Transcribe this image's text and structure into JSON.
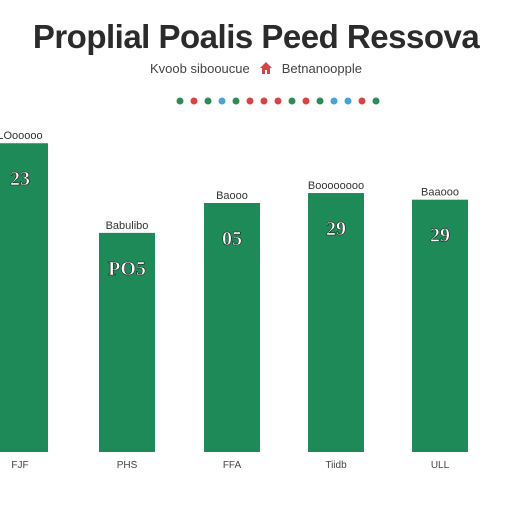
{
  "header": {
    "title": "Proplial Poalis Peed Ressova",
    "subtitle_left": "Kvoob sibooucue",
    "subtitle_right": "Betnanoopple",
    "house_icon": "house-icon"
  },
  "legend_dots": [
    "#2e8b57",
    "#d64545",
    "#2e8b57",
    "#4aa3d6",
    "#2e8b57",
    "#d64545",
    "#d64545",
    "#d64545",
    "#2e8b57",
    "#d64545",
    "#2e8b57",
    "#4aa3d6",
    "#4aa3d6",
    "#d64545",
    "#2e8b57"
  ],
  "colors": {
    "bar": "#1e8a57",
    "label_bg": "#ffffff",
    "label_text": "#222222"
  },
  "chart_data": {
    "type": "bar",
    "title": "Proplial Poalis Peed Ressova",
    "categories": [
      "FJF",
      "PHS",
      "FFA",
      "Tiidb",
      "ULL"
    ],
    "values": [
      93,
      66,
      75,
      78,
      76
    ],
    "bar_labels": [
      "23",
      "PO5",
      "05",
      "29",
      "29"
    ],
    "top_labels": [
      "LOooooo",
      "Babulibo",
      "Baooo",
      "Boooooooo",
      "Baaooo"
    ],
    "ylim": [
      0,
      100
    ],
    "grid": false,
    "xlabel": "",
    "ylabel": ""
  }
}
